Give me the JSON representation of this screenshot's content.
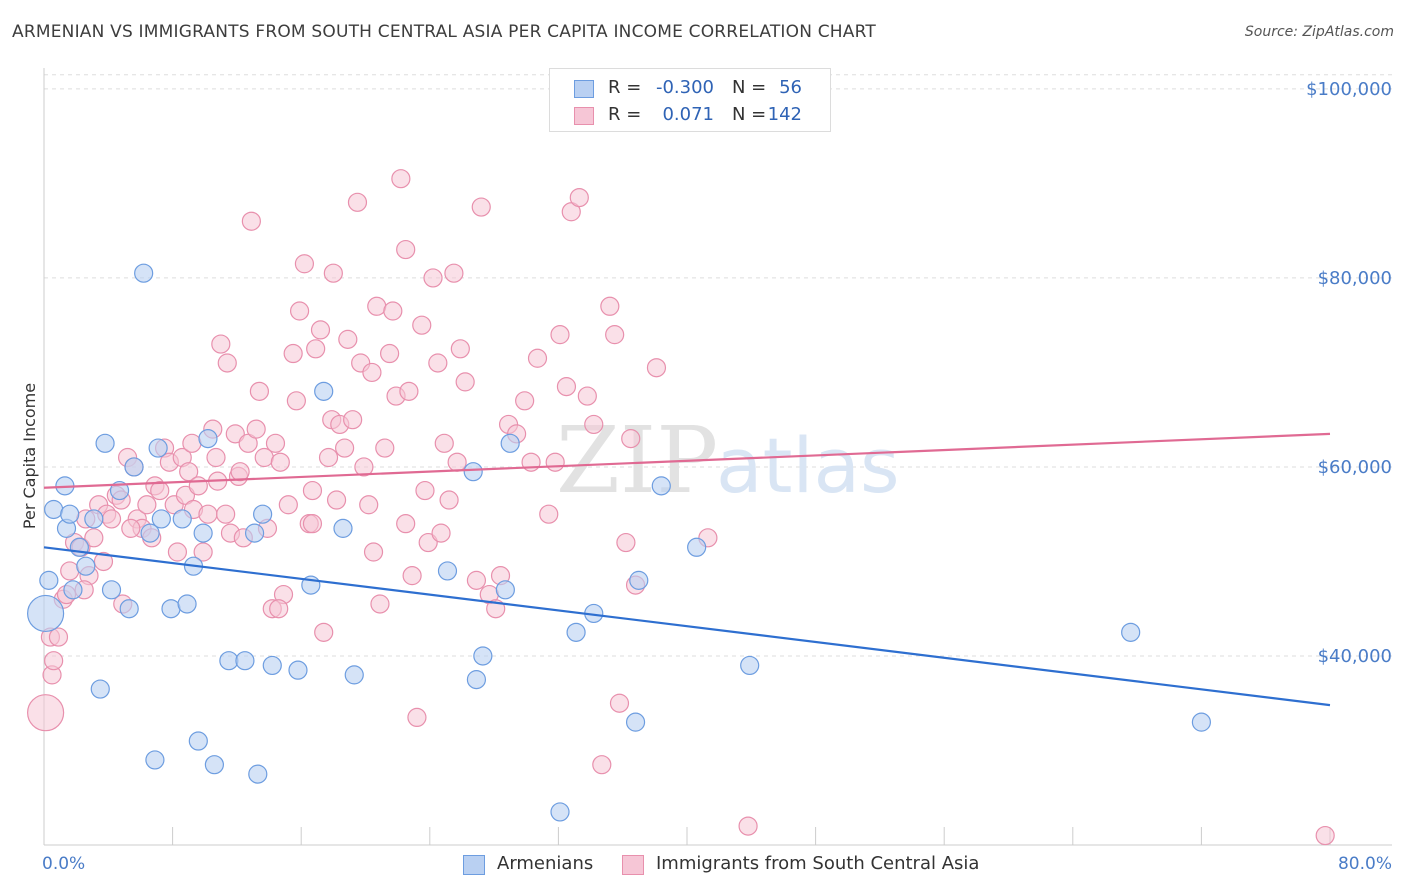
{
  "header": {
    "title": "ARMENIAN VS IMMIGRANTS FROM SOUTH CENTRAL ASIA PER CAPITA INCOME CORRELATION CHART",
    "source": "Source: ZipAtlas.com"
  },
  "watermark": {
    "zip": "ZIP",
    "atlas": "atlas"
  },
  "colors": {
    "blue": "#6d9de0",
    "blue_fill": "#b9d0f2",
    "blue_line": "#2e6fd0",
    "pink": "#e890ad",
    "pink_fill": "#f6c6d6",
    "pink_line": "#e06a93",
    "axis_text": "#4a7cc7"
  },
  "legend": {
    "rows": [
      {
        "r_label": "R =",
        "r_value": "-0.300",
        "n_label": "N =",
        "n_value": "56"
      },
      {
        "r_label": "R =",
        "r_value": "0.071",
        "n_label": "N =",
        "n_value": "142"
      }
    ]
  },
  "bottom_legend": {
    "armenians": "Armenians",
    "immigrants": "Immigrants from South Central Asia"
  },
  "chart_data": {
    "type": "scatter",
    "title": "ARMENIAN VS IMMIGRANTS FROM SOUTH CENTRAL ASIA PER CAPITA INCOME CORRELATION CHART",
    "ylabel": "Per Capita Income",
    "xlabel": "",
    "xlim": [
      0,
      80
    ],
    "ylim": [
      20000,
      102000
    ],
    "x_tick_labels": [
      "0.0%",
      "80.0%"
    ],
    "y_ticks": [
      40000,
      60000,
      80000,
      100000
    ],
    "y_tick_labels": [
      "$40,000",
      "$60,000",
      "$80,000",
      "$100,000"
    ],
    "grid": true,
    "legend_position": "top-center",
    "series": [
      {
        "name": "Armenians",
        "r": -0.3,
        "n": 56,
        "trend": {
          "x": [
            0,
            80
          ],
          "y": [
            51500,
            34800
          ]
        },
        "points": [
          [
            0.1,
            44500
          ],
          [
            0.6,
            55500
          ],
          [
            1.3,
            58000
          ],
          [
            1.4,
            53500
          ],
          [
            1.6,
            55000
          ],
          [
            1.8,
            47000
          ],
          [
            2.2,
            51500
          ],
          [
            2.6,
            49500
          ],
          [
            3.1,
            54500
          ],
          [
            3.5,
            36500
          ],
          [
            3.8,
            62500
          ],
          [
            4.2,
            47000
          ],
          [
            4.7,
            57500
          ],
          [
            5.3,
            45000
          ],
          [
            5.6,
            60000
          ],
          [
            6.2,
            80500
          ],
          [
            6.6,
            53000
          ],
          [
            6.9,
            29000
          ],
          [
            7.1,
            62000
          ],
          [
            7.3,
            54500
          ],
          [
            7.9,
            45000
          ],
          [
            8.6,
            54500
          ],
          [
            8.9,
            45500
          ],
          [
            9.3,
            49500
          ],
          [
            9.6,
            31000
          ],
          [
            9.9,
            53000
          ],
          [
            10.2,
            63000
          ],
          [
            10.6,
            28500
          ],
          [
            11.5,
            39500
          ],
          [
            12.5,
            39500
          ],
          [
            13.1,
            53000
          ],
          [
            13.3,
            27500
          ],
          [
            13.6,
            55000
          ],
          [
            14.2,
            39000
          ],
          [
            15.8,
            38500
          ],
          [
            16.6,
            47500
          ],
          [
            17.4,
            68000
          ],
          [
            18.6,
            53500
          ],
          [
            19.3,
            38000
          ],
          [
            25.1,
            49000
          ],
          [
            26.7,
            59500
          ],
          [
            26.9,
            37500
          ],
          [
            27.3,
            40000
          ],
          [
            28.7,
            47000
          ],
          [
            29.0,
            62500
          ],
          [
            32.1,
            23500
          ],
          [
            33.1,
            42500
          ],
          [
            34.2,
            44500
          ],
          [
            36.8,
            33000
          ],
          [
            37.0,
            48000
          ],
          [
            38.4,
            58000
          ],
          [
            40.6,
            51500
          ],
          [
            43.9,
            39000
          ],
          [
            67.6,
            42500
          ],
          [
            72.0,
            33000
          ],
          [
            0.3,
            48000
          ]
        ]
      },
      {
        "name": "Immigrants from South Central Asia",
        "r": 0.071,
        "n": 142,
        "trend": {
          "x": [
            0,
            80
          ],
          "y": [
            57800,
            63500
          ]
        },
        "points": [
          [
            0.1,
            34000
          ],
          [
            0.4,
            42000
          ],
          [
            0.5,
            38000
          ],
          [
            0.6,
            39500
          ],
          [
            0.9,
            42000
          ],
          [
            1.2,
            46000
          ],
          [
            1.4,
            46500
          ],
          [
            1.6,
            49000
          ],
          [
            1.9,
            52000
          ],
          [
            2.3,
            51500
          ],
          [
            2.6,
            54500
          ],
          [
            2.8,
            48500
          ],
          [
            3.1,
            52500
          ],
          [
            3.4,
            56000
          ],
          [
            3.7,
            50000
          ],
          [
            3.9,
            55000
          ],
          [
            4.2,
            54500
          ],
          [
            4.5,
            57000
          ],
          [
            4.8,
            56500
          ],
          [
            4.9,
            45500
          ],
          [
            5.2,
            61000
          ],
          [
            5.6,
            60000
          ],
          [
            5.8,
            54500
          ],
          [
            6.1,
            53500
          ],
          [
            6.4,
            56000
          ],
          [
            6.7,
            52500
          ],
          [
            6.9,
            58000
          ],
          [
            7.2,
            57500
          ],
          [
            7.5,
            62000
          ],
          [
            7.8,
            60500
          ],
          [
            8.1,
            56000
          ],
          [
            8.3,
            51000
          ],
          [
            8.6,
            61000
          ],
          [
            8.8,
            57000
          ],
          [
            9.0,
            59500
          ],
          [
            9.3,
            55500
          ],
          [
            9.6,
            58000
          ],
          [
            9.9,
            51000
          ],
          [
            10.2,
            55000
          ],
          [
            10.5,
            64000
          ],
          [
            10.7,
            61000
          ],
          [
            10.8,
            58500
          ],
          [
            11.0,
            73000
          ],
          [
            11.3,
            55000
          ],
          [
            11.6,
            53000
          ],
          [
            11.9,
            63500
          ],
          [
            12.1,
            59000
          ],
          [
            12.4,
            52500
          ],
          [
            12.7,
            62500
          ],
          [
            12.9,
            86000
          ],
          [
            13.2,
            64000
          ],
          [
            13.4,
            68000
          ],
          [
            13.7,
            61000
          ],
          [
            13.9,
            53500
          ],
          [
            14.2,
            45000
          ],
          [
            14.4,
            62500
          ],
          [
            14.7,
            60500
          ],
          [
            14.9,
            46500
          ],
          [
            15.2,
            56000
          ],
          [
            15.5,
            72000
          ],
          [
            15.7,
            67000
          ],
          [
            15.9,
            76500
          ],
          [
            16.2,
            81500
          ],
          [
            16.5,
            54000
          ],
          [
            16.7,
            57500
          ],
          [
            16.9,
            72500
          ],
          [
            17.2,
            74500
          ],
          [
            17.4,
            42500
          ],
          [
            17.7,
            61000
          ],
          [
            17.9,
            65000
          ],
          [
            18.2,
            56500
          ],
          [
            18.4,
            64500
          ],
          [
            18.7,
            62000
          ],
          [
            18.9,
            73500
          ],
          [
            19.2,
            65000
          ],
          [
            19.5,
            88000
          ],
          [
            19.7,
            71000
          ],
          [
            19.9,
            60000
          ],
          [
            20.2,
            56000
          ],
          [
            20.5,
            51000
          ],
          [
            20.7,
            77000
          ],
          [
            20.9,
            45500
          ],
          [
            21.2,
            62000
          ],
          [
            21.5,
            72000
          ],
          [
            21.7,
            76500
          ],
          [
            21.9,
            67500
          ],
          [
            22.2,
            90500
          ],
          [
            22.5,
            54000
          ],
          [
            22.7,
            68000
          ],
          [
            22.9,
            48500
          ],
          [
            23.2,
            33500
          ],
          [
            23.5,
            75000
          ],
          [
            23.7,
            57500
          ],
          [
            23.9,
            52000
          ],
          [
            24.2,
            80000
          ],
          [
            24.5,
            71000
          ],
          [
            24.7,
            53000
          ],
          [
            24.9,
            62500
          ],
          [
            25.2,
            56500
          ],
          [
            25.5,
            80500
          ],
          [
            25.7,
            60500
          ],
          [
            25.9,
            72500
          ],
          [
            26.2,
            69000
          ],
          [
            27.2,
            87500
          ],
          [
            27.7,
            46500
          ],
          [
            28.1,
            45000
          ],
          [
            28.4,
            48500
          ],
          [
            28.9,
            64500
          ],
          [
            29.4,
            63500
          ],
          [
            29.9,
            67000
          ],
          [
            30.3,
            60500
          ],
          [
            30.7,
            71500
          ],
          [
            31.4,
            55000
          ],
          [
            32.1,
            74000
          ],
          [
            32.5,
            68500
          ],
          [
            32.8,
            87000
          ],
          [
            33.3,
            88500
          ],
          [
            33.8,
            67500
          ],
          [
            34.2,
            64500
          ],
          [
            34.7,
            28500
          ],
          [
            35.2,
            77000
          ],
          [
            35.5,
            74000
          ],
          [
            35.8,
            35000
          ],
          [
            36.2,
            52000
          ],
          [
            36.5,
            63000
          ],
          [
            36.8,
            47500
          ],
          [
            38.1,
            70500
          ],
          [
            41.3,
            52500
          ],
          [
            43.8,
            22000
          ],
          [
            79.7,
            21000
          ],
          [
            22.5,
            83000
          ],
          [
            16.7,
            54000
          ],
          [
            26.9,
            48000
          ],
          [
            14.6,
            45000
          ],
          [
            9.2,
            62500
          ],
          [
            11.4,
            71000
          ],
          [
            31.8,
            60500
          ],
          [
            5.4,
            53500
          ],
          [
            2.5,
            47000
          ],
          [
            18.0,
            80500
          ],
          [
            20.4,
            70000
          ],
          [
            12.2,
            59500
          ]
        ]
      }
    ]
  }
}
